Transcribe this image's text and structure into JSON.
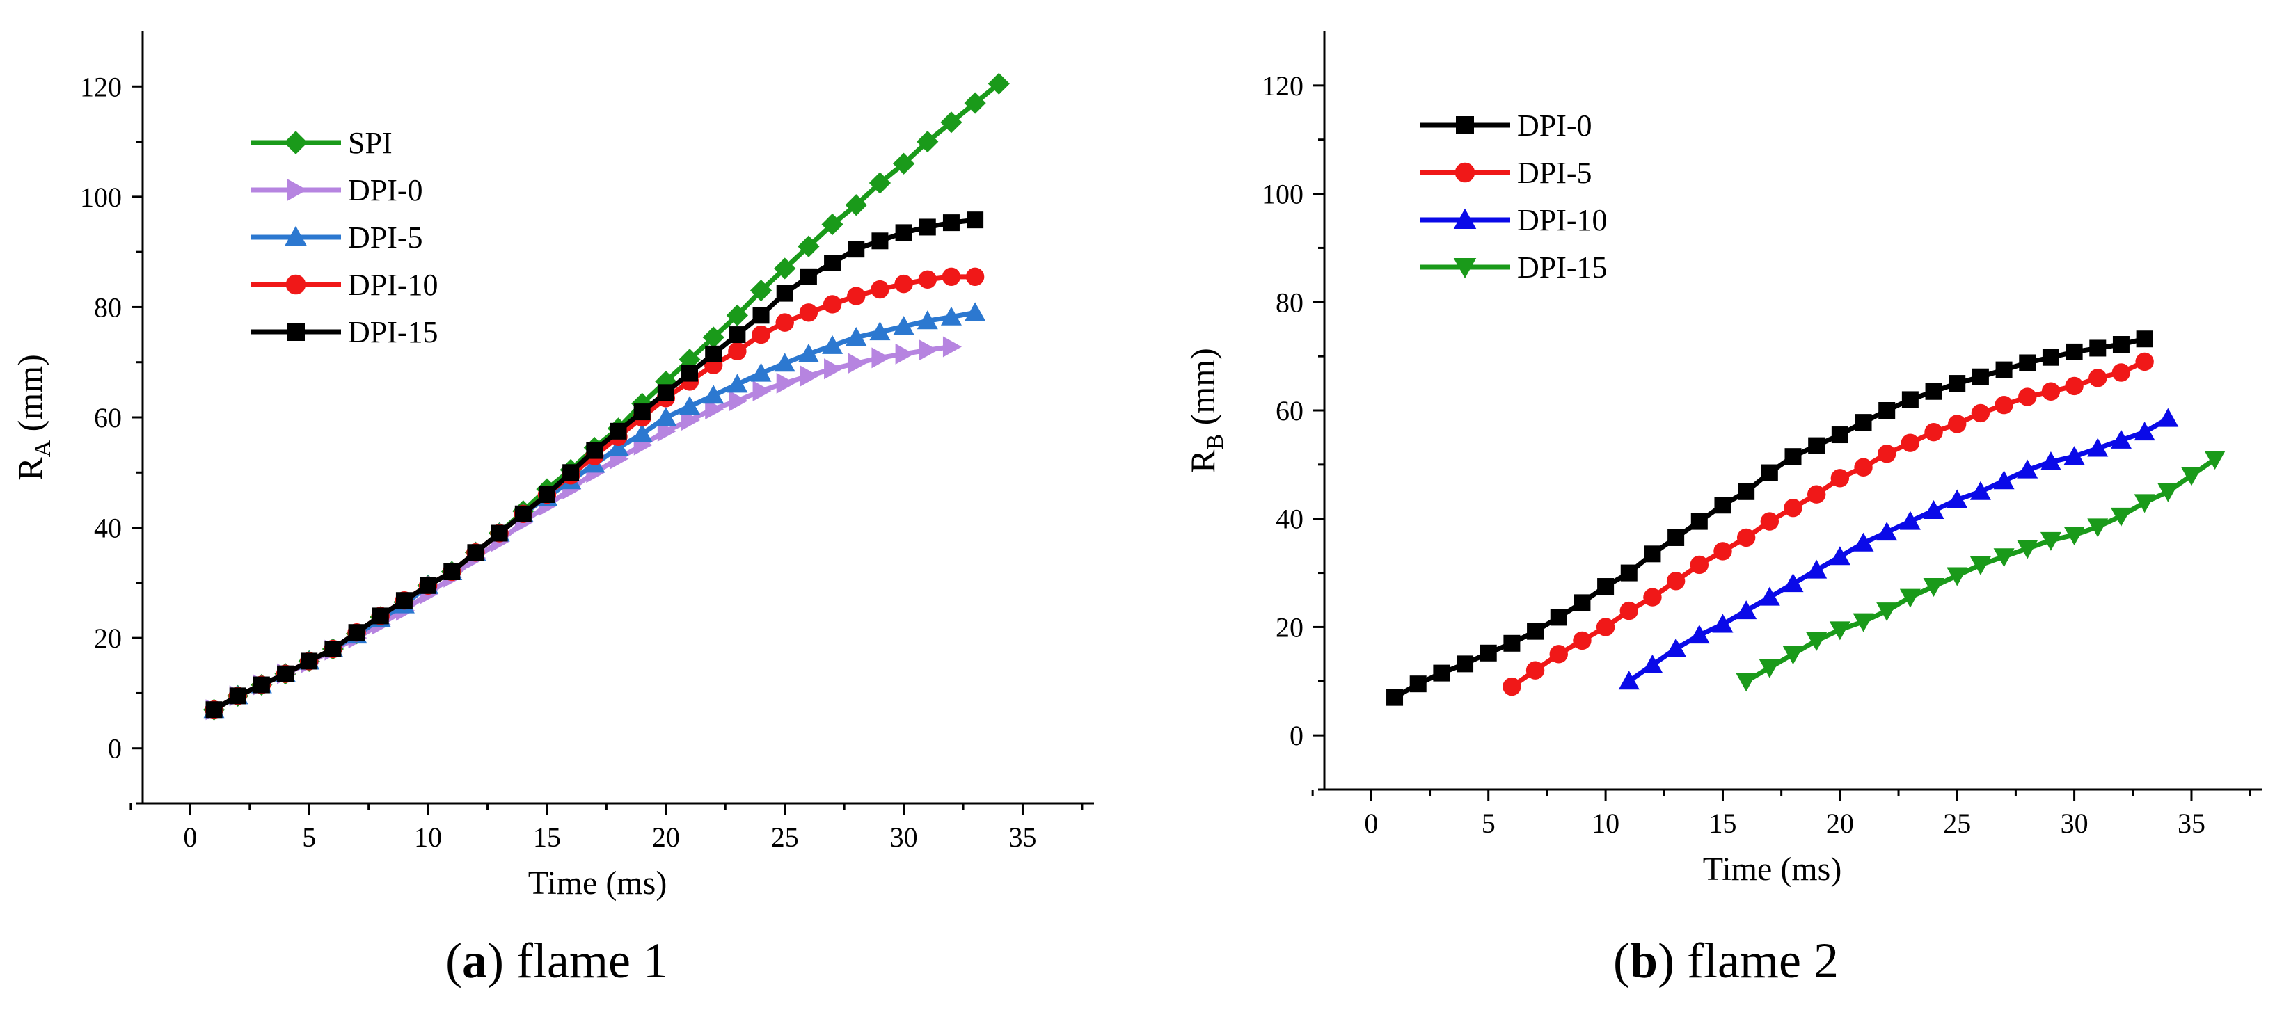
{
  "chart_data": [
    {
      "type": "line",
      "caption_bold": "a",
      "caption_rest": " flame 1",
      "xlabel": "Time (ms)",
      "ylabel_main": "R",
      "ylabel_sub": "A",
      "ylabel_tail": " (mm)",
      "xlim": [
        -2,
        38
      ],
      "ylim": [
        -10,
        130
      ],
      "xticks": [
        0,
        5,
        10,
        15,
        20,
        25,
        30,
        35
      ],
      "yticks": [
        0,
        20,
        40,
        60,
        80,
        100,
        120
      ],
      "legend_position": "top-left",
      "series": [
        {
          "name": "SPI",
          "color": "#1a9a1a",
          "marker": "diamond",
          "x": [
            1,
            2,
            3,
            4,
            5,
            6,
            7,
            8,
            9,
            10,
            11,
            12,
            13,
            14,
            15,
            16,
            17,
            18,
            19,
            20,
            21,
            22,
            23,
            24,
            25,
            26,
            27,
            28,
            29,
            30,
            31,
            32,
            33,
            34
          ],
          "y": [
            7,
            9.5,
            11.5,
            13.5,
            15.8,
            18,
            20.8,
            23.8,
            26.5,
            29.5,
            32,
            35.5,
            39,
            43,
            47,
            50.5,
            54.5,
            58,
            62.5,
            66.5,
            70.5,
            74.5,
            78.5,
            83,
            87,
            91,
            95,
            98.5,
            102.5,
            106,
            110,
            113.5,
            117,
            120.5
          ]
        },
        {
          "name": "DPI-0",
          "color": "#b684e0",
          "marker": "triangle-right",
          "x": [
            1,
            2,
            3,
            4,
            5,
            6,
            7,
            8,
            9,
            10,
            11,
            12,
            13,
            14,
            15,
            16,
            17,
            18,
            19,
            20,
            21,
            22,
            23,
            24,
            25,
            26,
            27,
            28,
            29,
            30,
            31,
            32
          ],
          "y": [
            7,
            9.5,
            11.5,
            13.5,
            15.5,
            17.8,
            20,
            22.5,
            25,
            28,
            31,
            34.5,
            37.5,
            41,
            44,
            47,
            50,
            52.5,
            55,
            57.5,
            59.5,
            61.5,
            63,
            64.8,
            66.2,
            67.5,
            68.8,
            69.8,
            70.8,
            71.5,
            72.2,
            72.8
          ]
        },
        {
          "name": "DPI-5",
          "color": "#2c78d0",
          "marker": "triangle-up",
          "x": [
            1,
            2,
            3,
            4,
            5,
            6,
            7,
            8,
            9,
            10,
            11,
            12,
            13,
            14,
            15,
            16,
            17,
            18,
            19,
            20,
            21,
            22,
            23,
            24,
            25,
            26,
            27,
            28,
            29,
            30,
            31,
            32,
            33
          ],
          "y": [
            7,
            9.5,
            11.5,
            13.5,
            15.8,
            18,
            20.5,
            23.5,
            26,
            29.5,
            32,
            35.5,
            39,
            42.5,
            45.5,
            48.5,
            51.5,
            54.5,
            57,
            60,
            62,
            64,
            66,
            68,
            69.8,
            71.5,
            73,
            74.5,
            75.5,
            76.5,
            77.5,
            78.2,
            79
          ]
        },
        {
          "name": "DPI-10",
          "color": "#f01818",
          "marker": "circle",
          "x": [
            1,
            2,
            3,
            4,
            5,
            6,
            7,
            8,
            9,
            10,
            11,
            12,
            13,
            14,
            15,
            16,
            17,
            18,
            19,
            20,
            21,
            22,
            23,
            24,
            25,
            26,
            27,
            28,
            29,
            30,
            31,
            32,
            33
          ],
          "y": [
            7,
            9.5,
            11.5,
            13.5,
            15.8,
            18,
            21,
            24,
            26.8,
            29.5,
            32,
            35.5,
            39,
            42.5,
            46,
            49.5,
            53,
            56.5,
            60,
            63.5,
            66.5,
            69.5,
            72,
            75,
            77.2,
            79,
            80.5,
            82,
            83.2,
            84.2,
            85,
            85.5,
            85.5
          ]
        },
        {
          "name": "DPI-15",
          "color": "#000000",
          "marker": "square",
          "x": [
            1,
            2,
            3,
            4,
            5,
            6,
            7,
            8,
            9,
            10,
            11,
            12,
            13,
            14,
            15,
            16,
            17,
            18,
            19,
            20,
            21,
            22,
            23,
            24,
            25,
            26,
            27,
            28,
            29,
            30,
            31,
            32,
            33
          ],
          "y": [
            7,
            9.5,
            11.5,
            13.5,
            15.8,
            18,
            21,
            24,
            26.8,
            29.5,
            32,
            35.5,
            39,
            42.5,
            46,
            50,
            54,
            57.5,
            61,
            64.5,
            68,
            71.5,
            75,
            78.5,
            82.5,
            85.5,
            88,
            90.5,
            92,
            93.5,
            94.5,
            95.3,
            95.8
          ]
        }
      ]
    },
    {
      "type": "line",
      "caption_bold": "b",
      "caption_rest": " flame 2",
      "xlabel": "Time (ms)",
      "ylabel_main": "R",
      "ylabel_sub": "B",
      "ylabel_tail": " (mm)",
      "xlim": [
        -2,
        38
      ],
      "ylim": [
        -10,
        130
      ],
      "xticks": [
        0,
        5,
        10,
        15,
        20,
        25,
        30,
        35
      ],
      "yticks": [
        0,
        20,
        40,
        60,
        80,
        100,
        120
      ],
      "legend_position": "top-left",
      "series": [
        {
          "name": "DPI-0",
          "color": "#000000",
          "marker": "square",
          "x": [
            1,
            2,
            3,
            4,
            5,
            6,
            7,
            8,
            9,
            10,
            11,
            12,
            13,
            14,
            15,
            16,
            17,
            18,
            19,
            20,
            21,
            22,
            23,
            24,
            25,
            26,
            27,
            28,
            29,
            30,
            31,
            32,
            33
          ],
          "y": [
            7,
            9.5,
            11.5,
            13.2,
            15.2,
            17,
            19.2,
            21.8,
            24.5,
            27.5,
            30,
            33.5,
            36.5,
            39.5,
            42.5,
            45,
            48.5,
            51.5,
            53.5,
            55.5,
            57.8,
            60,
            62,
            63.5,
            65,
            66.2,
            67.5,
            68.8,
            69.8,
            70.8,
            71.5,
            72.2,
            73.2
          ]
        },
        {
          "name": "DPI-5",
          "color": "#f01818",
          "marker": "circle",
          "x": [
            6,
            7,
            8,
            9,
            10,
            11,
            12,
            13,
            14,
            15,
            16,
            17,
            18,
            19,
            20,
            21,
            22,
            23,
            24,
            25,
            26,
            27,
            28,
            29,
            30,
            31,
            32,
            33
          ],
          "y": [
            9,
            12,
            15,
            17.5,
            20,
            23,
            25.5,
            28.5,
            31.5,
            34,
            36.5,
            39.5,
            42,
            44.5,
            47.5,
            49.5,
            52,
            54,
            56,
            57.5,
            59.5,
            61,
            62.5,
            63.5,
            64.5,
            66,
            67,
            69
          ]
        },
        {
          "name": "DPI-10",
          "color": "#0a0ae8",
          "marker": "triangle-up",
          "x": [
            11,
            12,
            13,
            14,
            15,
            16,
            17,
            18,
            19,
            20,
            21,
            22,
            23,
            24,
            25,
            26,
            27,
            28,
            29,
            30,
            31,
            32,
            33,
            34
          ],
          "y": [
            10,
            13,
            16,
            18.5,
            20.5,
            23,
            25.5,
            28,
            30.5,
            33,
            35.5,
            37.5,
            39.5,
            41.5,
            43.5,
            45,
            47,
            49,
            50.5,
            51.5,
            53,
            54.5,
            56,
            58.5
          ]
        },
        {
          "name": "DPI-15",
          "color": "#1a9a1a",
          "marker": "triangle-down",
          "x": [
            16,
            17,
            18,
            19,
            20,
            21,
            22,
            23,
            24,
            25,
            26,
            27,
            28,
            29,
            30,
            31,
            32,
            33,
            34,
            35,
            36
          ],
          "y": [
            10,
            12.5,
            15,
            17.5,
            19.5,
            21,
            23,
            25.5,
            27.5,
            29.5,
            31.5,
            33,
            34.5,
            36,
            37,
            38.5,
            40.5,
            43,
            45,
            48,
            51
          ]
        }
      ]
    }
  ]
}
